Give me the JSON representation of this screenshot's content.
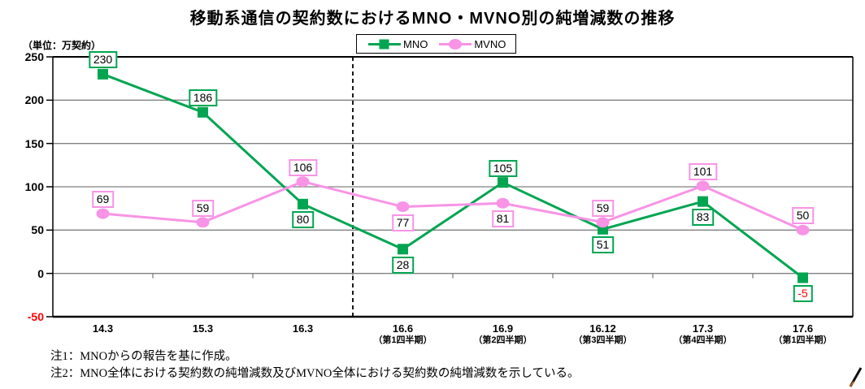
{
  "title": "移動系通信の契約数におけるMNO・MVNO別の純増減数の推移",
  "unit_label": "（単位：万契約）",
  "legend": {
    "items": [
      {
        "label": "MNO",
        "color": "#00A551",
        "marker": "square"
      },
      {
        "label": "MVNO",
        "color": "#F893E6",
        "marker": "circle"
      }
    ]
  },
  "notes": [
    "注1：MNOからの報告を基に作成。",
    "注2：MNO全体における契約数の純増減数及びMVNO全体における契約数の純増減数を示している。"
  ],
  "colors": {
    "mno": "#00A551",
    "mvno": "#F893E6",
    "grid": "#808080",
    "axis": "#000000",
    "negative_text": "#FF0000"
  },
  "chart_data": {
    "type": "line",
    "title": "移動系通信の契約数におけるMNO・MVNO別の純増減数の推移",
    "ylabel": "（単位：万契約）",
    "categories": [
      "14.3",
      "15.3",
      "16.3",
      "16.6",
      "16.9",
      "16.12",
      "17.3",
      "17.6"
    ],
    "category_sublabels": [
      "",
      "",
      "",
      "（第1四半期）",
      "（第2四半期）",
      "（第3四半期）",
      "（第4四半期）",
      "（第1四半期）"
    ],
    "series": [
      {
        "name": "MNO",
        "color": "#00A551",
        "marker": "square",
        "values": [
          230,
          186,
          80,
          28,
          105,
          51,
          83,
          -5
        ],
        "label_side": [
          "above",
          "above",
          "below",
          "below",
          "above",
          "below",
          "below",
          "below"
        ]
      },
      {
        "name": "MVNO",
        "color": "#F893E6",
        "marker": "circle",
        "values": [
          69,
          59,
          106,
          77,
          81,
          59,
          101,
          50
        ],
        "label_side": [
          "above",
          "above",
          "above",
          "below",
          "below",
          "above",
          "above",
          "above"
        ]
      }
    ],
    "ylim": [
      -50,
      250
    ],
    "yticks": [
      250,
      200,
      150,
      100,
      50,
      0,
      -50
    ],
    "grid": true,
    "legend_position": "top",
    "divider_after_category_index": 2
  }
}
